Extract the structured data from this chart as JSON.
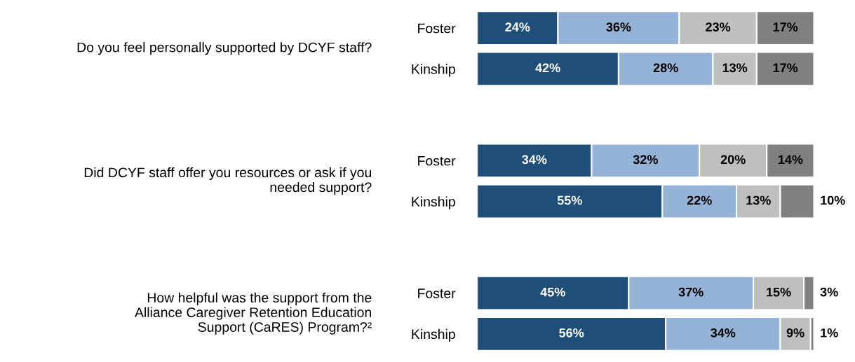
{
  "chart_data": {
    "type": "bar",
    "orientation": "horizontal",
    "stacked": true,
    "categories": [
      "Foster",
      "Kinship",
      "Foster",
      "Kinship",
      "Foster",
      "Kinship"
    ],
    "series": [
      {
        "color": "#1f4e79",
        "values": [
          24,
          42,
          34,
          55,
          45,
          56
        ],
        "value_labels": [
          "24%",
          "42%",
          "34%",
          "55%",
          "45%",
          "56%"
        ]
      },
      {
        "color": "#95b3d7",
        "values": [
          36,
          28,
          32,
          22,
          37,
          34
        ],
        "value_labels": [
          "36%",
          "28%",
          "32%",
          "22%",
          "37%",
          "34%"
        ]
      },
      {
        "color": "#bfbfbf",
        "values": [
          23,
          13,
          20,
          13,
          15,
          9
        ],
        "value_labels": [
          "23%",
          "13%",
          "20%",
          "13%",
          "15%",
          "9%"
        ]
      },
      {
        "color": "#808080",
        "values": [
          17,
          17,
          14,
          10,
          3,
          1
        ],
        "value_labels": [
          "17%",
          "17%",
          "14%",
          "10%",
          "3%",
          "1%"
        ]
      }
    ],
    "xlim": [
      0,
      100
    ],
    "tick_labels": "y",
    "grid": false,
    "legend": false,
    "annotations": [
      "Do you feel personally supported by DCYF staff?",
      "Did DCYF staff offer you resources or ask if you\nneeded support?",
      "How helpful was the support from the\nAlliance Caregiver Retention Education\nSupport (CaRES) Program?²"
    ]
  }
}
